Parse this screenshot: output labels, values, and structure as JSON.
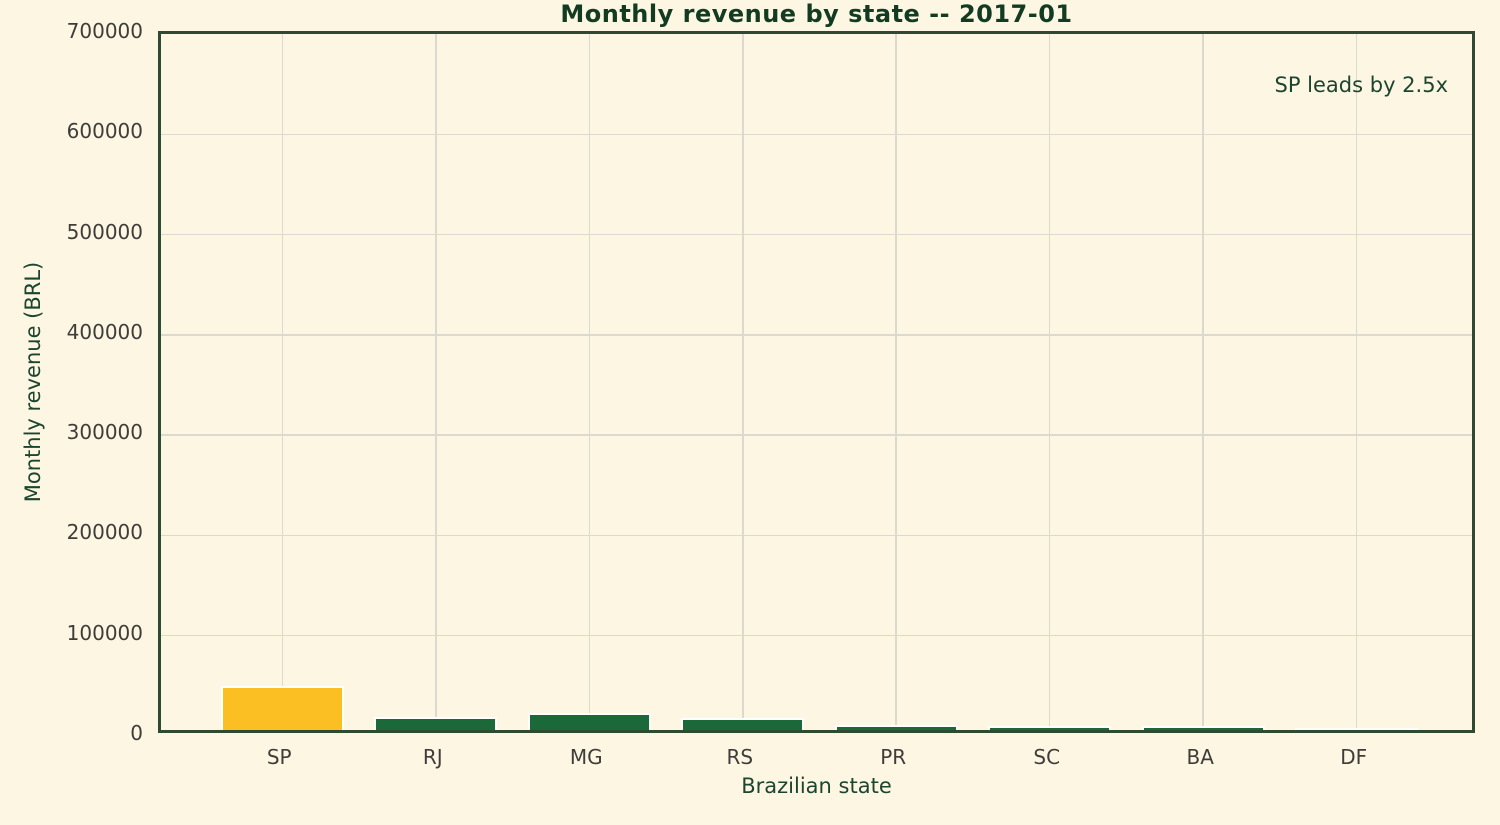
{
  "title": "Monthly revenue by state -- 2017-01",
  "annotation": "SP leads by 2.5x",
  "chart_data": {
    "type": "bar",
    "title": "Monthly revenue by state -- 2017-01",
    "categories": [
      "SP",
      "RJ",
      "MG",
      "RS",
      "PR",
      "SC",
      "BA",
      "DF"
    ],
    "values": [
      44000,
      13000,
      17300,
      11500,
      5300,
      4300,
      3600,
      1400
    ],
    "xlabel": "Brazilian state",
    "ylabel": "Monthly revenue (BRL)",
    "ylim": [
      0,
      700000
    ],
    "yticks": [
      0,
      100000,
      200000,
      300000,
      400000,
      500000,
      600000,
      700000
    ],
    "ytick_labels": [
      "0",
      "100000",
      "200000",
      "300000",
      "400000",
      "500000",
      "600000",
      "700000"
    ],
    "grid": true,
    "legend": null,
    "annotation": "SP leads by 2.5x",
    "highlight_category": "SP",
    "highlight_index": 0,
    "bar_relative_width": 0.8
  },
  "style": {
    "background": "#FDF6E3",
    "spine_color": "#2F4A33",
    "grid_color": "#DCDAD0",
    "title_color": "#123B22",
    "axis_label_color": "#1C4530",
    "tick_label_color": "#3F3D39",
    "bar_color_default": "#1B6939",
    "bar_color_highlight": "#FBBE23",
    "bar_edge_color": "#FFFFFF"
  }
}
